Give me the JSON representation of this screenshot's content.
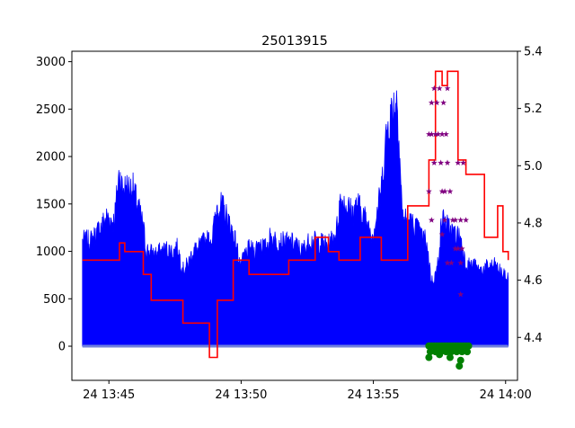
{
  "chart_data": {
    "type": "line",
    "title": "25013915",
    "xlabel": "",
    "ylabel": "",
    "y2label": "",
    "x_ticks": [
      "24 13:45",
      "24 13:50",
      "24 13:55",
      "24 14:00"
    ],
    "x_tick_minutes": [
      45,
      50,
      55,
      60
    ],
    "xlim_minutes": [
      43.6,
      60.45
    ],
    "ylim": [
      -360,
      3110
    ],
    "y_ticks": [
      0,
      500,
      1000,
      1500,
      2000,
      2500,
      3000
    ],
    "y2lim": [
      4.25,
      5.4
    ],
    "y2_ticks": [
      4.4,
      4.6,
      4.8,
      5.0,
      5.2,
      5.4
    ],
    "y2_tick_labels": [
      "4.4",
      "4.6",
      "4.8",
      "5.0",
      "5.2",
      "5.4"
    ],
    "grid": false,
    "legend": "none",
    "colors": {
      "blue_series": "#0000ff",
      "baseline_series": "#6f7fdd",
      "red_series": "#ff0000",
      "green_markers": "#008000",
      "purple_markers": "#800080"
    },
    "series": [
      {
        "axis": "left",
        "kind": "spiky-area",
        "color": "#0000ff",
        "x_minutes": [
          44.0,
          44.3,
          44.5,
          44.9,
          45.2,
          45.4,
          45.5,
          45.9,
          46.3,
          46.4,
          46.7,
          47.2,
          47.4,
          47.6,
          47.8,
          48.0,
          48.2,
          48.35,
          48.6,
          48.9,
          49.1,
          49.3,
          49.6,
          49.8,
          50.0,
          50.1,
          50.3,
          50.5,
          50.7,
          50.9,
          51.1,
          51.3,
          51.6,
          52.0,
          52.3,
          52.6,
          53.0,
          53.3,
          53.6,
          53.75,
          54.0,
          54.2,
          54.4,
          54.6,
          54.8,
          55.0,
          55.3,
          55.5,
          55.7,
          55.9,
          56.1,
          56.3,
          56.6,
          56.8,
          57.0,
          57.2,
          57.4,
          57.6,
          57.9,
          58.1,
          58.3,
          58.5,
          58.8,
          59.0,
          59.3,
          59.6,
          60.0,
          60.1
        ],
        "y": [
          1230,
          1230,
          1300,
          1500,
          1460,
          2050,
          1850,
          1850,
          1400,
          1130,
          1070,
          1130,
          1100,
          1150,
          890,
          960,
          1130,
          1120,
          1220,
          1250,
          1650,
          1620,
          1400,
          1210,
          910,
          1050,
          1130,
          1100,
          1230,
          1130,
          1270,
          1240,
          1210,
          1200,
          1110,
          1230,
          1210,
          1180,
          1330,
          1720,
          1640,
          1560,
          1650,
          1560,
          1400,
          1320,
          1830,
          2500,
          2750,
          2910,
          1500,
          1460,
          1390,
          1290,
          1230,
          750,
          870,
          1500,
          1350,
          1310,
          1260,
          950,
          940,
          880,
          920,
          940,
          800,
          800
        ]
      },
      {
        "axis": "left",
        "kind": "baseline",
        "color": "#6f7fdd",
        "x_minutes": [
          44.0,
          60.1
        ],
        "y": [
          0,
          0
        ]
      },
      {
        "axis": "right",
        "kind": "step",
        "color": "#ff0000",
        "x_minutes": [
          44.0,
          45.4,
          45.6,
          46.3,
          46.6,
          47.8,
          48.8,
          49.1,
          49.7,
          50.3,
          51.8,
          52.8,
          53.3,
          53.7,
          54.5,
          55.3,
          56.3,
          57.1,
          57.35,
          57.6,
          57.8,
          58.2,
          58.5,
          59.2,
          59.7,
          59.9,
          60.1
        ],
        "y": [
          4.67,
          4.73,
          4.7,
          4.62,
          4.53,
          4.45,
          4.33,
          4.53,
          4.67,
          4.62,
          4.67,
          4.75,
          4.7,
          4.67,
          4.75,
          4.67,
          4.86,
          5.02,
          5.33,
          5.28,
          5.33,
          5.02,
          4.97,
          4.75,
          4.86,
          4.7,
          4.67
        ]
      }
    ],
    "markers": [
      {
        "axis": "right",
        "shape": "star",
        "color": "#800080",
        "x_minutes": [
          57.1,
          57.2,
          57.35,
          57.45,
          57.6,
          57.75,
          57.3,
          57.5,
          57.8,
          57.2,
          57.4,
          57.65,
          57.3,
          57.55,
          57.8,
          57.1,
          57.6,
          57.7,
          57.9,
          57.7,
          58.0,
          58.1,
          58.3,
          58.5,
          58.2,
          58.4,
          57.8,
          57.95,
          58.3,
          58.1,
          58.2,
          58.35,
          57.2,
          57.6,
          58.3
        ],
        "y": [
          5.11,
          5.11,
          5.11,
          5.11,
          5.11,
          5.11,
          5.27,
          5.27,
          5.27,
          5.22,
          5.22,
          5.22,
          5.01,
          5.01,
          5.01,
          4.91,
          4.91,
          4.91,
          4.91,
          4.81,
          4.81,
          4.81,
          4.81,
          4.81,
          5.01,
          5.01,
          4.66,
          4.66,
          4.66,
          4.71,
          4.71,
          4.71,
          4.81,
          4.76,
          4.55
        ]
      },
      {
        "axis": "right",
        "shape": "circle",
        "color": "#008000",
        "x_minutes": [
          57.1,
          57.2,
          57.3,
          57.4,
          57.5,
          57.6,
          57.7,
          57.8,
          57.9,
          58.0,
          58.1,
          58.2,
          58.3,
          58.4,
          58.5,
          58.6,
          57.15,
          57.35,
          57.55,
          57.75,
          57.95,
          58.15,
          58.35,
          58.55,
          57.1,
          57.9,
          58.3,
          57.5,
          58.25
        ],
        "y": [
          4.37,
          4.37,
          4.37,
          4.37,
          4.37,
          4.37,
          4.37,
          4.37,
          4.37,
          4.37,
          4.37,
          4.37,
          4.37,
          4.37,
          4.37,
          4.37,
          4.35,
          4.35,
          4.35,
          4.35,
          4.35,
          4.35,
          4.35,
          4.35,
          4.33,
          4.33,
          4.32,
          4.34,
          4.3
        ]
      }
    ]
  }
}
